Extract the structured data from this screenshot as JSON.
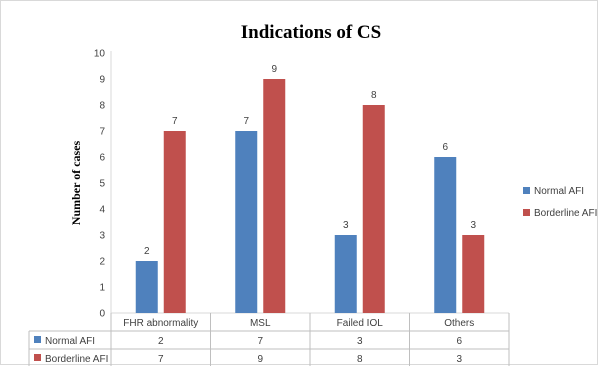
{
  "chart_data": {
    "type": "bar",
    "title": "Indications of CS",
    "xlabel": "",
    "ylabel": "Number of cases",
    "ylim": [
      0,
      10
    ],
    "yticks": [
      0,
      1,
      2,
      3,
      4,
      5,
      6,
      7,
      8,
      9,
      10
    ],
    "grid": false,
    "legend_position": "right",
    "has_data_table": true,
    "categories": [
      "FHR abnormality",
      "MSL",
      "Failed IOL",
      "Others"
    ],
    "series": [
      {
        "name": "Normal AFI",
        "color": "#4f81bd",
        "values": [
          2,
          7,
          3,
          6
        ]
      },
      {
        "name": "Borderline AFI",
        "color": "#c0504d",
        "values": [
          7,
          9,
          8,
          3
        ]
      }
    ]
  }
}
